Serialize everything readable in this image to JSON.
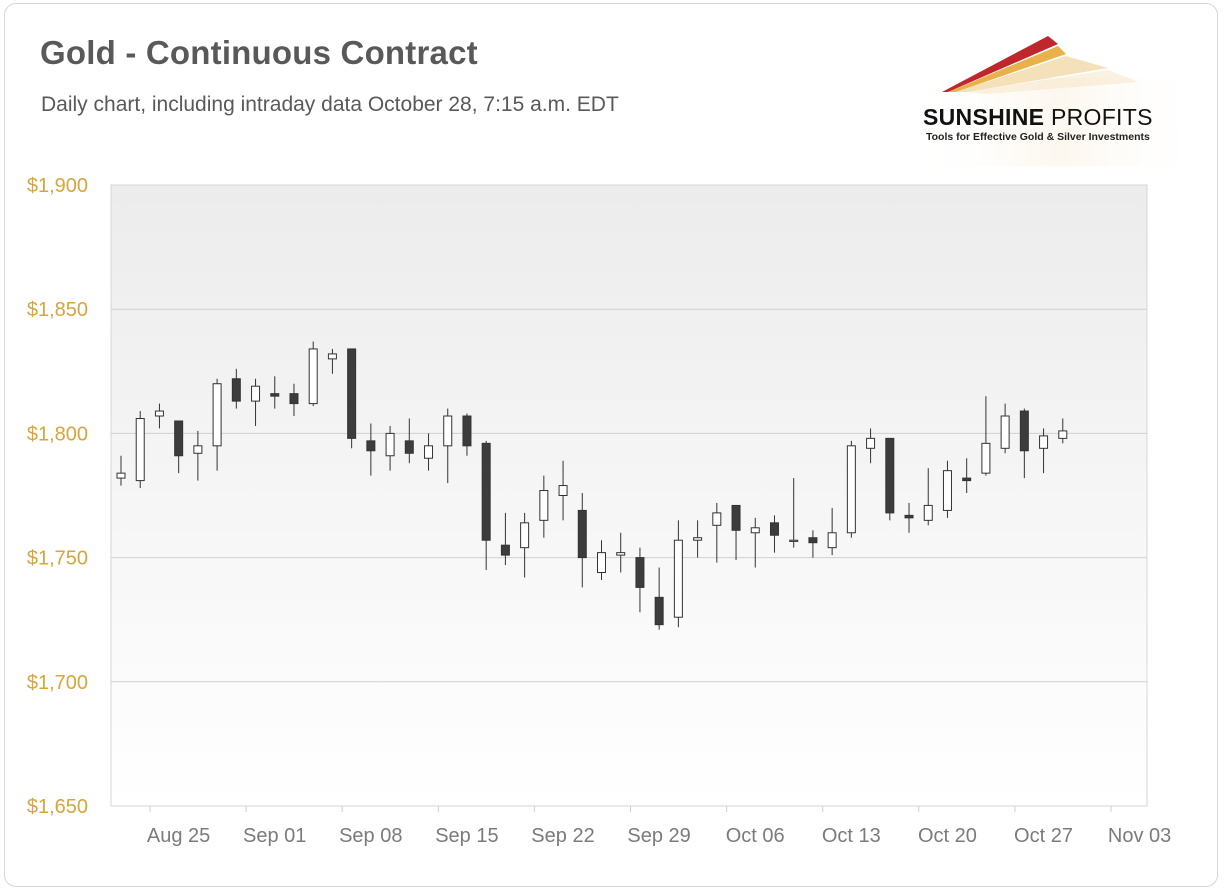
{
  "title": "Gold - Continuous Contract",
  "subtitle": "Daily chart, including intraday data October 28, 7:15 a.m. EDT",
  "logo": {
    "name_bold": "SUNSHINE",
    "name_light": " PROFITS",
    "tagline": "Tools for Effective Gold & Silver Investments",
    "colors": [
      "#c0272d",
      "#e8b14a",
      "#f3d9a8"
    ]
  },
  "colors": {
    "up_fill": "#ffffff",
    "down_fill": "#3c3c3c",
    "wick": "#333333",
    "grid": "#d0d0d0",
    "y_label": "#d9a53b",
    "x_label": "#7b7b7b",
    "plot_bg_top": "#ececec",
    "plot_bg_bottom": "#ffffff"
  },
  "chart_data": {
    "type": "candlestick",
    "title": "Gold - Continuous Contract",
    "ylim": [
      1650,
      1900
    ],
    "y_ticks": [
      1900,
      1850,
      1800,
      1750,
      1700,
      1650
    ],
    "y_tick_labels": [
      "$1,900",
      "$1,850",
      "$1,800",
      "$1,750",
      "$1,700",
      "$1,650"
    ],
    "x_ticks": [
      "Aug 25",
      "Sep 01",
      "Sep 08",
      "Sep 15",
      "Sep 22",
      "Sep 29",
      "Oct 06",
      "Oct 13",
      "Oct 20",
      "Oct 27",
      "Nov 03"
    ],
    "grid": true,
    "candles": [
      {
        "date": "Aug 20",
        "open": 1782,
        "high": 1791,
        "low": 1779,
        "close": 1784
      },
      {
        "date": "Aug 23",
        "open": 1781,
        "high": 1809,
        "low": 1778,
        "close": 1806
      },
      {
        "date": "Aug 24",
        "open": 1807,
        "high": 1812,
        "low": 1802,
        "close": 1809
      },
      {
        "date": "Aug 25",
        "open": 1805,
        "high": 1805,
        "low": 1784,
        "close": 1791
      },
      {
        "date": "Aug 26",
        "open": 1792,
        "high": 1801,
        "low": 1781,
        "close": 1795
      },
      {
        "date": "Aug 27",
        "open": 1795,
        "high": 1822,
        "low": 1785,
        "close": 1820
      },
      {
        "date": "Aug 30",
        "open": 1822,
        "high": 1826,
        "low": 1810,
        "close": 1813
      },
      {
        "date": "Aug 31",
        "open": 1813,
        "high": 1822,
        "low": 1803,
        "close": 1819
      },
      {
        "date": "Sep 01",
        "open": 1816,
        "high": 1823,
        "low": 1810,
        "close": 1815
      },
      {
        "date": "Sep 02",
        "open": 1816,
        "high": 1820,
        "low": 1807,
        "close": 1812
      },
      {
        "date": "Sep 03",
        "open": 1812,
        "high": 1837,
        "low": 1811,
        "close": 1834
      },
      {
        "date": "Sep 06",
        "open": 1830,
        "high": 1834,
        "low": 1824,
        "close": 1832
      },
      {
        "date": "Sep 07",
        "open": 1834,
        "high": 1834,
        "low": 1794,
        "close": 1798
      },
      {
        "date": "Sep 08",
        "open": 1797,
        "high": 1804,
        "low": 1783,
        "close": 1793
      },
      {
        "date": "Sep 09",
        "open": 1791,
        "high": 1803,
        "low": 1785,
        "close": 1800
      },
      {
        "date": "Sep 10",
        "open": 1797,
        "high": 1806,
        "low": 1788,
        "close": 1792
      },
      {
        "date": "Sep 13",
        "open": 1790,
        "high": 1800,
        "low": 1785,
        "close": 1795
      },
      {
        "date": "Sep 14",
        "open": 1795,
        "high": 1810,
        "low": 1780,
        "close": 1807
      },
      {
        "date": "Sep 15",
        "open": 1807,
        "high": 1808,
        "low": 1791,
        "close": 1795
      },
      {
        "date": "Sep 16",
        "open": 1796,
        "high": 1797,
        "low": 1745,
        "close": 1757
      },
      {
        "date": "Sep 17",
        "open": 1755,
        "high": 1768,
        "low": 1747,
        "close": 1751
      },
      {
        "date": "Sep 20",
        "open": 1754,
        "high": 1768,
        "low": 1742,
        "close": 1764
      },
      {
        "date": "Sep 21",
        "open": 1765,
        "high": 1783,
        "low": 1758,
        "close": 1777
      },
      {
        "date": "Sep 22",
        "open": 1775,
        "high": 1789,
        "low": 1765,
        "close": 1779
      },
      {
        "date": "Sep 23",
        "open": 1769,
        "high": 1776,
        "low": 1738,
        "close": 1750
      },
      {
        "date": "Sep 24",
        "open": 1744,
        "high": 1757,
        "low": 1741,
        "close": 1752
      },
      {
        "date": "Sep 27",
        "open": 1751,
        "high": 1760,
        "low": 1744,
        "close": 1752
      },
      {
        "date": "Sep 28",
        "open": 1750,
        "high": 1754,
        "low": 1728,
        "close": 1738
      },
      {
        "date": "Sep 29",
        "open": 1734,
        "high": 1746,
        "low": 1721,
        "close": 1723
      },
      {
        "date": "Sep 30",
        "open": 1726,
        "high": 1765,
        "low": 1722,
        "close": 1757
      },
      {
        "date": "Oct 01",
        "open": 1757,
        "high": 1765,
        "low": 1750,
        "close": 1758
      },
      {
        "date": "Oct 04",
        "open": 1763,
        "high": 1772,
        "low": 1748,
        "close": 1768
      },
      {
        "date": "Oct 05",
        "open": 1771,
        "high": 1771,
        "low": 1749,
        "close": 1761
      },
      {
        "date": "Oct 06",
        "open": 1760,
        "high": 1766,
        "low": 1746,
        "close": 1762
      },
      {
        "date": "Oct 07",
        "open": 1764,
        "high": 1767,
        "low": 1752,
        "close": 1759
      },
      {
        "date": "Oct 08",
        "open": 1757,
        "high": 1782,
        "low": 1754,
        "close": 1757
      },
      {
        "date": "Oct 11",
        "open": 1758,
        "high": 1761,
        "low": 1750,
        "close": 1756
      },
      {
        "date": "Oct 12",
        "open": 1754,
        "high": 1770,
        "low": 1751,
        "close": 1760
      },
      {
        "date": "Oct 13",
        "open": 1760,
        "high": 1797,
        "low": 1758,
        "close": 1795
      },
      {
        "date": "Oct 14",
        "open": 1794,
        "high": 1802,
        "low": 1788,
        "close": 1798
      },
      {
        "date": "Oct 15",
        "open": 1798,
        "high": 1798,
        "low": 1765,
        "close": 1768
      },
      {
        "date": "Oct 18",
        "open": 1767,
        "high": 1772,
        "low": 1760,
        "close": 1766
      },
      {
        "date": "Oct 19",
        "open": 1765,
        "high": 1786,
        "low": 1763,
        "close": 1771
      },
      {
        "date": "Oct 20",
        "open": 1769,
        "high": 1789,
        "low": 1766,
        "close": 1785
      },
      {
        "date": "Oct 21",
        "open": 1782,
        "high": 1790,
        "low": 1776,
        "close": 1781
      },
      {
        "date": "Oct 22",
        "open": 1784,
        "high": 1815,
        "low": 1783,
        "close": 1796
      },
      {
        "date": "Oct 25",
        "open": 1794,
        "high": 1812,
        "low": 1792,
        "close": 1807
      },
      {
        "date": "Oct 26",
        "open": 1809,
        "high": 1810,
        "low": 1782,
        "close": 1793
      },
      {
        "date": "Oct 27",
        "open": 1794,
        "high": 1802,
        "low": 1784,
        "close": 1799
      },
      {
        "date": "Oct 28",
        "open": 1798,
        "high": 1806,
        "low": 1796,
        "close": 1801
      }
    ]
  }
}
